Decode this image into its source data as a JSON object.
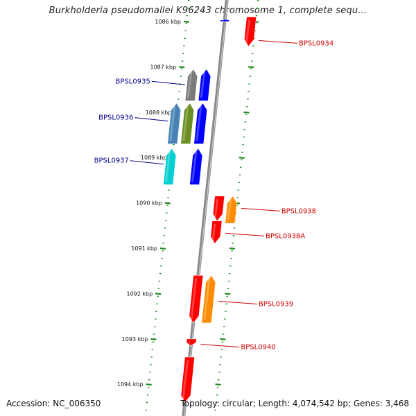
{
  "title": "Burkholderia pseudomallei K96243 chromosome 1, complete sequ...",
  "footer": {
    "accession": "Accession: NC_006350",
    "summary": "Topology: circular; Length: 4,074,542 bp; Genes: 3,468"
  },
  "colors": {
    "backbone": "#8a8a8a",
    "ruler": "#1e8a1e",
    "label_left": "#00008b",
    "label_right": "#cc0000"
  },
  "ticks": [
    {
      "kbp": 1086,
      "label": "1086 kbp"
    },
    {
      "kbp": 1087,
      "label": "1087 kbp"
    },
    {
      "kbp": 1088,
      "label": "1088 kbp"
    },
    {
      "kbp": 1089,
      "label": "1089 kbp"
    },
    {
      "kbp": 1090,
      "label": "1090 kbp"
    },
    {
      "kbp": 1091,
      "label": "1091 kbp"
    },
    {
      "kbp": 1092,
      "label": "1092 kbp"
    },
    {
      "kbp": 1093,
      "label": "1093 kbp"
    },
    {
      "kbp": 1094,
      "label": "1094 kbp"
    }
  ],
  "features": [
    {
      "lane": 0,
      "start": 1085.95,
      "end": 1086.0,
      "strand": "+",
      "color": "#0000ff"
    },
    {
      "lane": 2,
      "start": 1085.9,
      "end": 1086.55,
      "strand": "-",
      "color": "#ff0000"
    },
    {
      "lane": -2,
      "start": 1087.05,
      "end": 1087.75,
      "strand": "+",
      "color": "#7a7a7a"
    },
    {
      "lane": -1,
      "start": 1087.05,
      "end": 1087.75,
      "strand": "+",
      "color": "#0000ff"
    },
    {
      "lane": -3,
      "start": 1087.8,
      "end": 1088.7,
      "strand": "+",
      "color": "#4682b4"
    },
    {
      "lane": -2,
      "start": 1087.8,
      "end": 1088.7,
      "strand": "+",
      "color": "#6b8e23"
    },
    {
      "lane": -1,
      "start": 1087.8,
      "end": 1088.7,
      "strand": "+",
      "color": "#0000ff"
    },
    {
      "lane": -3,
      "start": 1088.8,
      "end": 1089.6,
      "strand": "+",
      "color": "#00ced1"
    },
    {
      "lane": -1,
      "start": 1088.8,
      "end": 1089.6,
      "strand": "+",
      "color": "#0000ff"
    },
    {
      "lane": 1,
      "start": 1089.85,
      "end": 1090.4,
      "strand": "-",
      "color": "#ff0000"
    },
    {
      "lane": 2,
      "start": 1089.85,
      "end": 1090.45,
      "strand": "+",
      "color": "#ff8c00"
    },
    {
      "lane": 1,
      "start": 1090.4,
      "end": 1090.9,
      "strand": "-",
      "color": "#ff0000"
    },
    {
      "lane": 0,
      "start": 1091.6,
      "end": 1092.65,
      "strand": "-",
      "color": "#ff0000"
    },
    {
      "lane": 1,
      "start": 1091.6,
      "end": 1092.65,
      "strand": "+",
      "color": "#ff8c00"
    },
    {
      "lane": 0,
      "start": 1093.0,
      "end": 1093.15,
      "strand": "-",
      "color": "#ff0000"
    },
    {
      "lane": 0,
      "start": 1093.4,
      "end": 1094.4,
      "strand": "-",
      "color": "#ff0000"
    }
  ],
  "labels": [
    {
      "text": "BPSL0934",
      "side": "right",
      "kbp": 1086.45,
      "featureLane": 2
    },
    {
      "text": "BPSL0935",
      "side": "left",
      "kbp": 1087.35,
      "featureLane": -2
    },
    {
      "text": "BPSL0936",
      "side": "left",
      "kbp": 1088.15,
      "featureLane": -3
    },
    {
      "text": "BPSL0937",
      "side": "left",
      "kbp": 1089.1,
      "featureLane": -3
    },
    {
      "text": "BPSL0938",
      "side": "right",
      "kbp": 1090.15,
      "featureLane": 2
    },
    {
      "text": "BPSL0938A",
      "side": "right",
      "kbp": 1090.7,
      "featureLane": 1
    },
    {
      "text": "BPSL0939",
      "side": "right",
      "kbp": 1092.2,
      "featureLane": 1
    },
    {
      "text": "BPSL0940",
      "side": "right",
      "kbp": 1093.15,
      "featureLane": 0
    }
  ]
}
